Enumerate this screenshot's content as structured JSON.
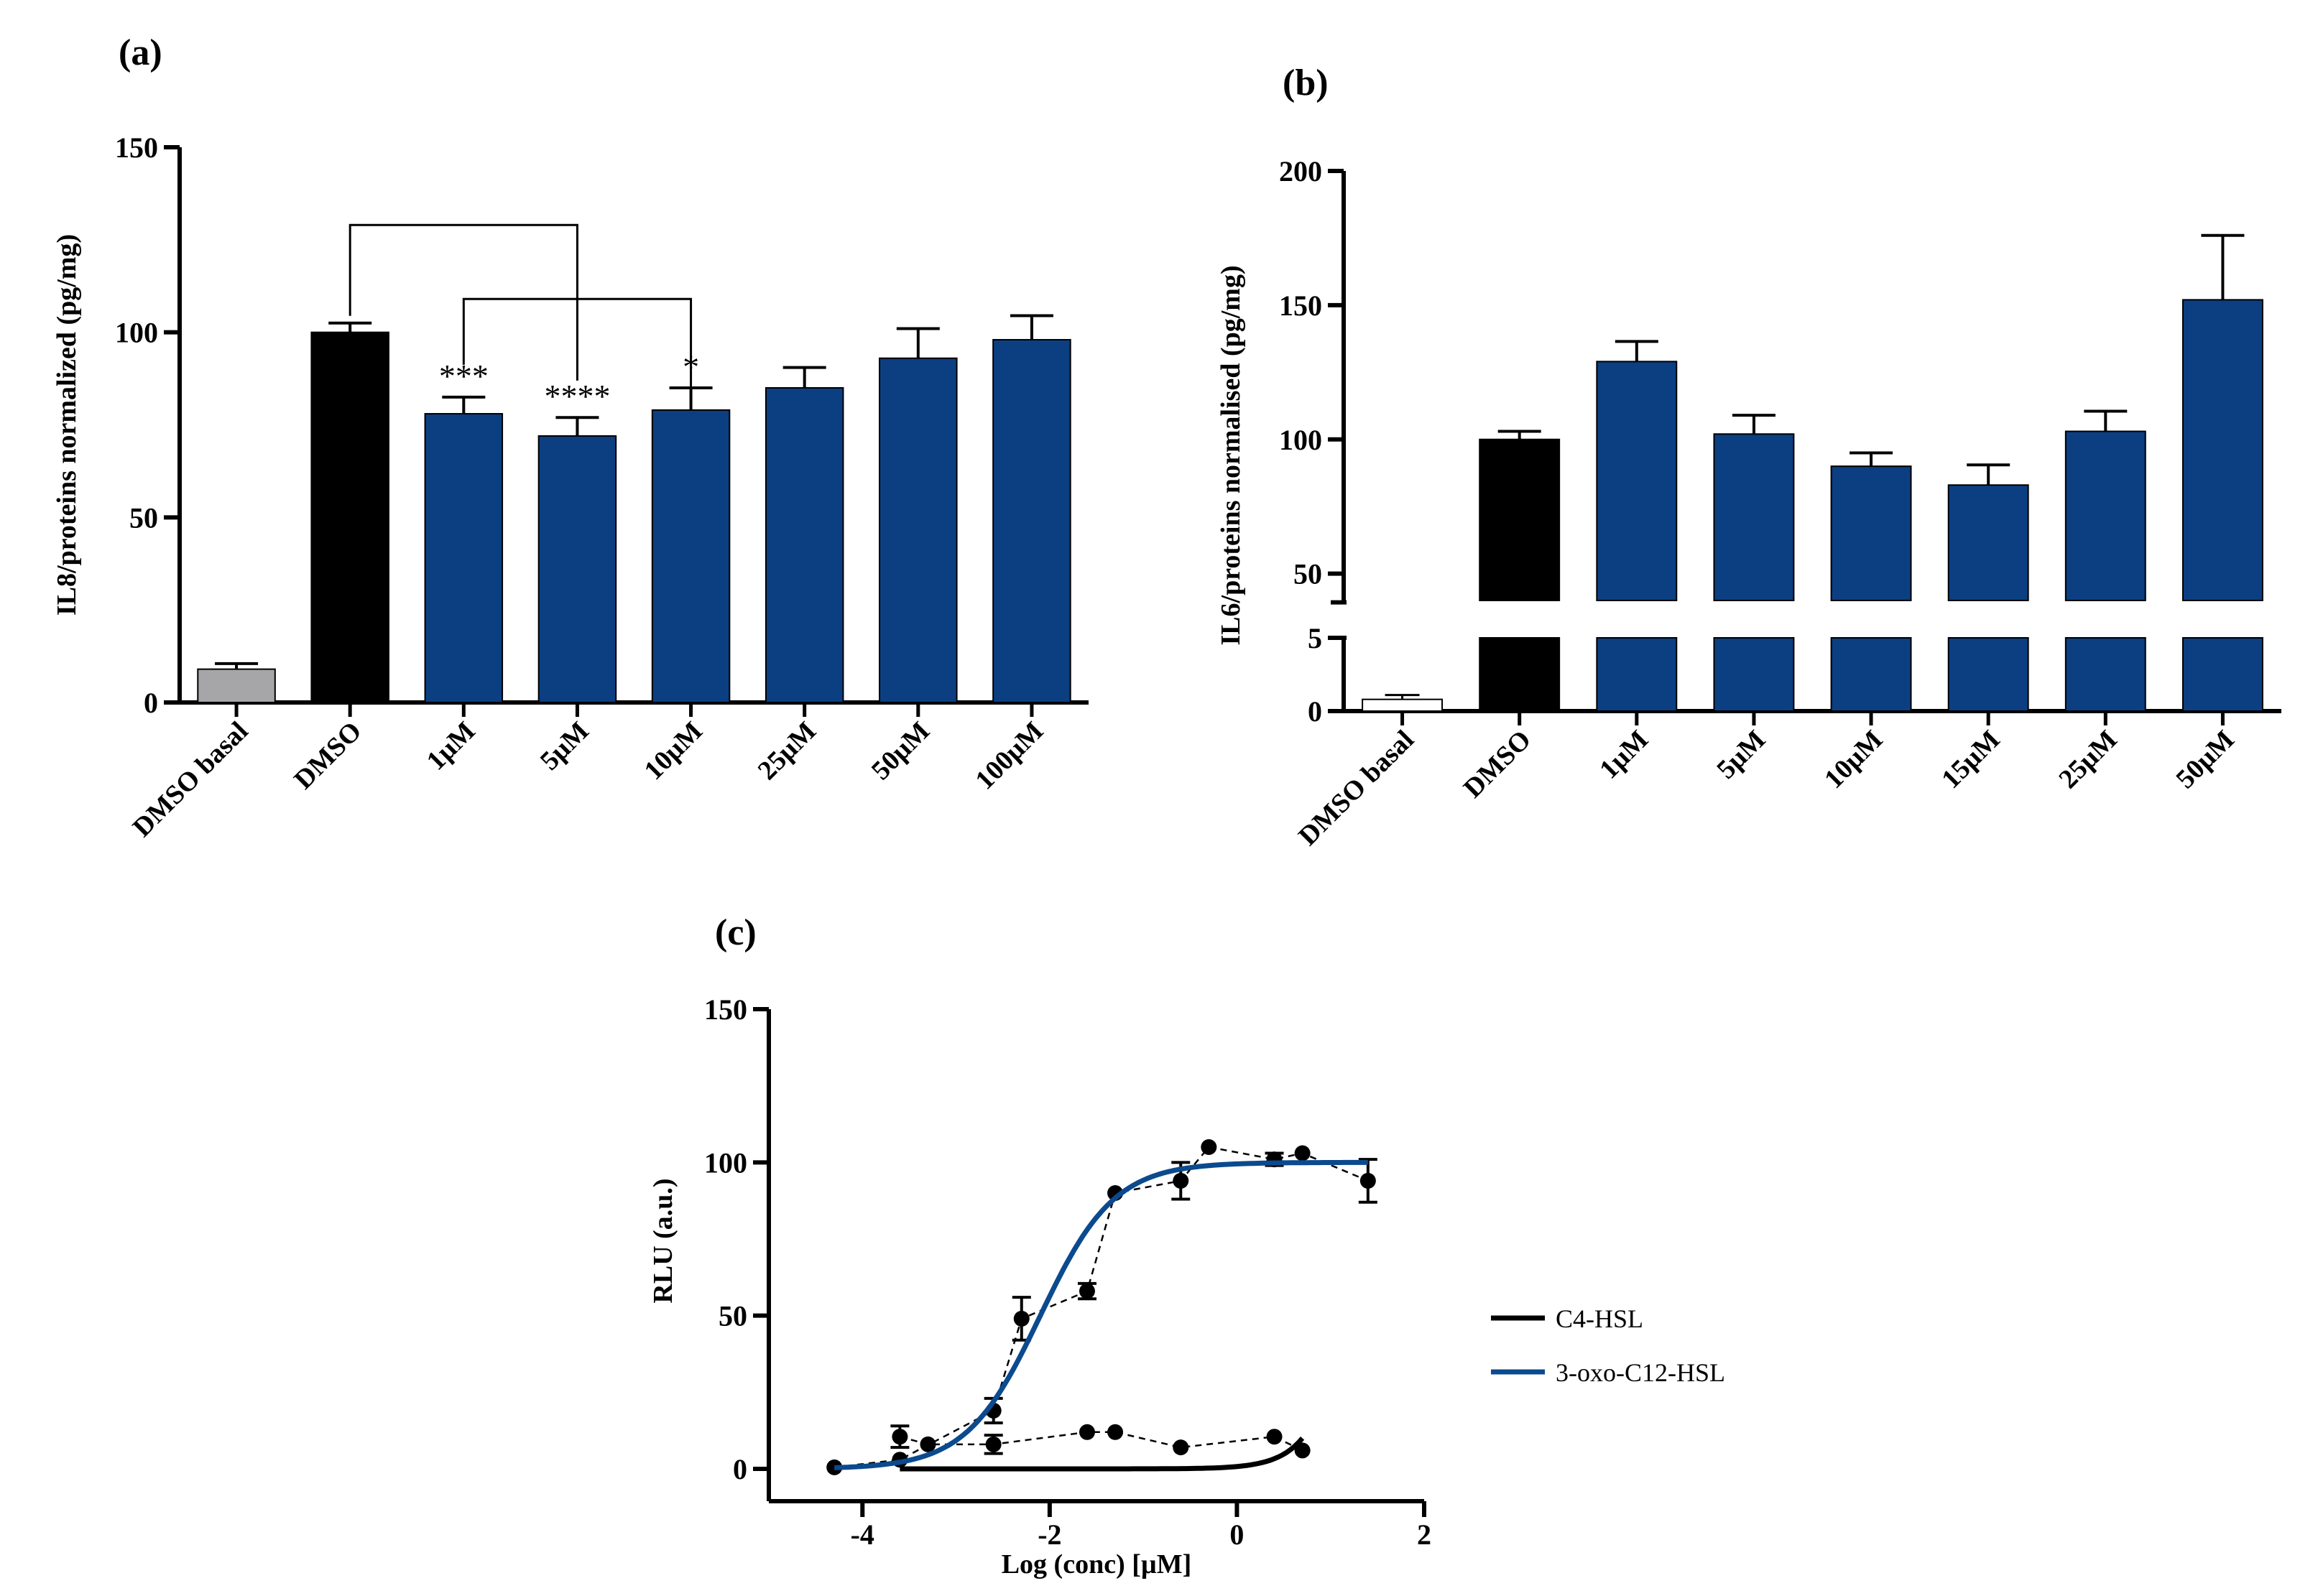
{
  "chart_data": [
    {
      "panel": "(a)",
      "type": "bar",
      "ylabel": "IL8/proteins normalized (pg/mg)",
      "ylim": [
        0,
        150
      ],
      "yticks": [
        "0",
        "50",
        "100",
        "150"
      ],
      "categories": [
        "DMSO basal",
        "DMSO",
        "1µM",
        "5µM",
        "10µM",
        "25µM",
        "50µM",
        "100µM"
      ],
      "values": [
        9,
        100,
        78,
        72,
        79,
        85,
        93,
        98
      ],
      "errors": [
        1.5,
        2.5,
        4.5,
        5,
        6,
        5.5,
        8,
        6.5
      ],
      "colors": [
        "#a6a6a8",
        "#000000",
        "#0b3f82",
        "#0b3f82",
        "#0b3f82",
        "#0b3f82",
        "#0b3f82",
        "#0b3f82"
      ],
      "annotations": [
        "",
        "",
        "***",
        "****",
        "*",
        "",
        "",
        ""
      ],
      "brackets": [
        [
          1,
          3
        ],
        [
          2,
          4
        ]
      ]
    },
    {
      "panel": "(b)",
      "type": "bar",
      "ylabel": "IL6/proteins normalised (pg/mg)",
      "broken_axis": {
        "lower": [
          0,
          5
        ],
        "upper": [
          40,
          200
        ]
      },
      "yticks_lower": [
        "0",
        "5"
      ],
      "yticks_upper": [
        "50",
        "100",
        "150",
        "200"
      ],
      "categories": [
        "DMSO basal",
        "DMSO",
        "1µM",
        "5µM",
        "10µM",
        "15µM",
        "25µM",
        "50µM"
      ],
      "values": [
        0.8,
        100,
        129,
        102,
        90,
        83,
        103,
        152
      ],
      "errors": [
        0.1,
        3,
        7.5,
        7,
        5,
        7.5,
        7.5,
        24
      ],
      "colors": [
        "#ffffff",
        "#000000",
        "#0b3f82",
        "#0b3f82",
        "#0b3f82",
        "#0b3f82",
        "#0b3f82",
        "#0b3f82"
      ]
    },
    {
      "panel": "(c)",
      "type": "line",
      "xlabel": "Log (conc) [µM]",
      "ylabel": "RLU (a.u.)",
      "xlim": [
        -5,
        2
      ],
      "ylim": [
        0,
        150
      ],
      "xticks": [
        "-4",
        "-2",
        "0",
        "2"
      ],
      "yticks": [
        "0",
        "50",
        "100",
        "150"
      ],
      "series": [
        {
          "name": "C4-HSL",
          "color": "#000000",
          "points": [
            [
              -3.6,
              10.5
            ],
            [
              -3.3,
              8
            ],
            [
              -2.6,
              8
            ],
            [
              -1.6,
              12
            ],
            [
              -1.3,
              12
            ],
            [
              -0.6,
              7
            ],
            [
              0.4,
              10.5
            ],
            [
              0.7,
              6
            ]
          ],
          "errors": [
            3.5,
            0,
            3,
            0,
            0,
            0,
            0,
            0
          ]
        },
        {
          "name": "3-oxo-C12-HSL",
          "color": "#0b4a8e",
          "points": [
            [
              -4.3,
              0.5
            ],
            [
              -3.6,
              3
            ],
            [
              -2.6,
              19
            ],
            [
              -2.3,
              49
            ],
            [
              -1.6,
              58
            ],
            [
              -1.3,
              90
            ],
            [
              -0.6,
              94
            ],
            [
              -0.3,
              105
            ],
            [
              0.4,
              101
            ],
            [
              0.7,
              103
            ],
            [
              1.4,
              94
            ]
          ],
          "errors": [
            0,
            0,
            4,
            7,
            2.5,
            0,
            6,
            0,
            2,
            0,
            7
          ]
        }
      ],
      "fits": [
        {
          "name": "C4-HSL",
          "x_from": -3.6,
          "x_to": 0.7
        },
        {
          "name": "3-oxo-C12-HSL",
          "x_from": -4.3,
          "x_to": 1.4,
          "top": 100,
          "bottom": 0,
          "logEC50": -2.1
        }
      ]
    }
  ]
}
